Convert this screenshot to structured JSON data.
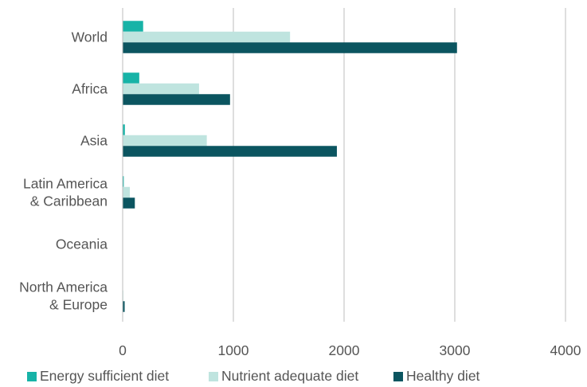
{
  "chart_data": {
    "type": "bar",
    "orientation": "horizontal",
    "categories": [
      "World",
      "Africa",
      "Asia",
      "Latin America & Caribbean",
      "Oceania",
      "North America & Europe"
    ],
    "category_lines": [
      [
        "World"
      ],
      [
        "Africa"
      ],
      [
        "Asia"
      ],
      [
        "Latin America",
        "& Caribbean"
      ],
      [
        "Oceania"
      ],
      [
        "North America",
        "& Europe"
      ]
    ],
    "series": [
      {
        "name": "Energy sufficient diet",
        "color": "#17b3a7",
        "values": [
          185,
          150,
          20,
          10,
          1,
          1
        ]
      },
      {
        "name": "Nutrient adequate diet",
        "color": "#bfe4df",
        "values": [
          1512,
          690,
          760,
          65,
          3,
          6
        ]
      },
      {
        "name": "Healthy diet",
        "color": "#0b5560",
        "values": [
          3020,
          970,
          1935,
          110,
          3,
          18
        ]
      }
    ],
    "xlim": [
      0,
      4000
    ],
    "xticks": [
      0,
      1000,
      2000,
      3000,
      4000
    ],
    "xtick_labels": [
      "0",
      "1000",
      "2000",
      "3000",
      "4000"
    ],
    "grid": "vertical",
    "legend": "bottom",
    "title": "",
    "xlabel": "",
    "ylabel": ""
  }
}
